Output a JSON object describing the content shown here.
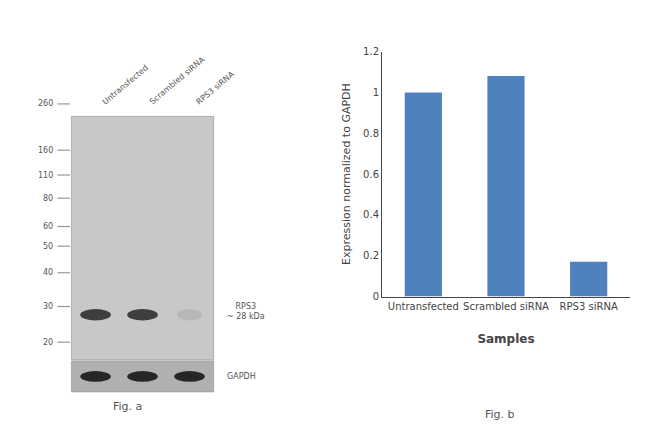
{
  "chart_data": {
    "type": "bar",
    "categories": [
      "Untransfected",
      "Scrambled siRNA",
      "RPS3 siRNA"
    ],
    "values": [
      1.0,
      1.08,
      0.17
    ],
    "color": "#4f81bd",
    "xlabel": "Samples",
    "ylabel": "Expression normalized to GAPDH",
    "ylim": [
      0,
      1.2
    ],
    "yticks": [
      0,
      0.2,
      0.4,
      0.6,
      0.8,
      1,
      1.2
    ],
    "grid": false,
    "annotations": [
      "260",
      "160",
      "110",
      "80",
      "60",
      "50",
      "40",
      "30",
      "20",
      "Untransfected",
      "Scrambled siRNA",
      "RPS3 siRNA",
      "RPS3\n~ 28 kDa",
      "GAPDH",
      "Fig. a",
      "Fig. b"
    ]
  }
}
